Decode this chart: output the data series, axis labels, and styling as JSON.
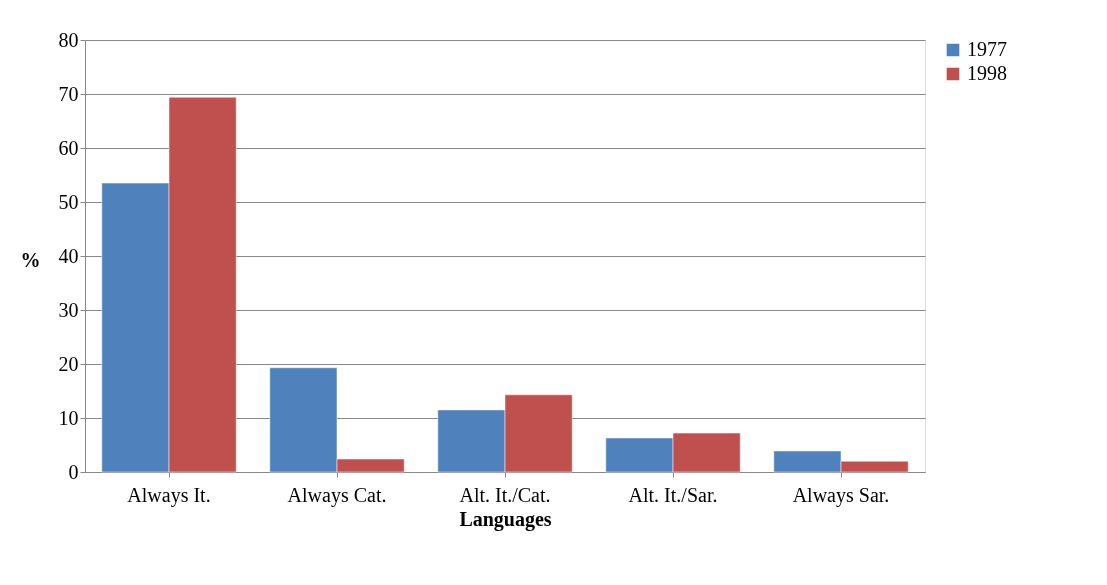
{
  "chart_data": {
    "type": "bar",
    "xlabel": "Languages",
    "ylabel": "%",
    "categories": [
      "Always It.",
      "Always Cat.",
      "Alt. It./Cat.",
      "Alt. It./Sar.",
      "Always Sar."
    ],
    "series": [
      {
        "name": "1977",
        "color": "#4f81bd",
        "values": [
          53.5,
          19.3,
          11.5,
          6.3,
          3.9
        ]
      },
      {
        "name": "1998",
        "color": "#c0504d",
        "values": [
          69.4,
          2.4,
          14.3,
          7.2,
          2.0
        ]
      }
    ],
    "ylim": [
      0,
      80
    ],
    "yticks": [
      0,
      10,
      20,
      30,
      40,
      50,
      60,
      70,
      80
    ],
    "grid": "y",
    "legend": "right"
  }
}
